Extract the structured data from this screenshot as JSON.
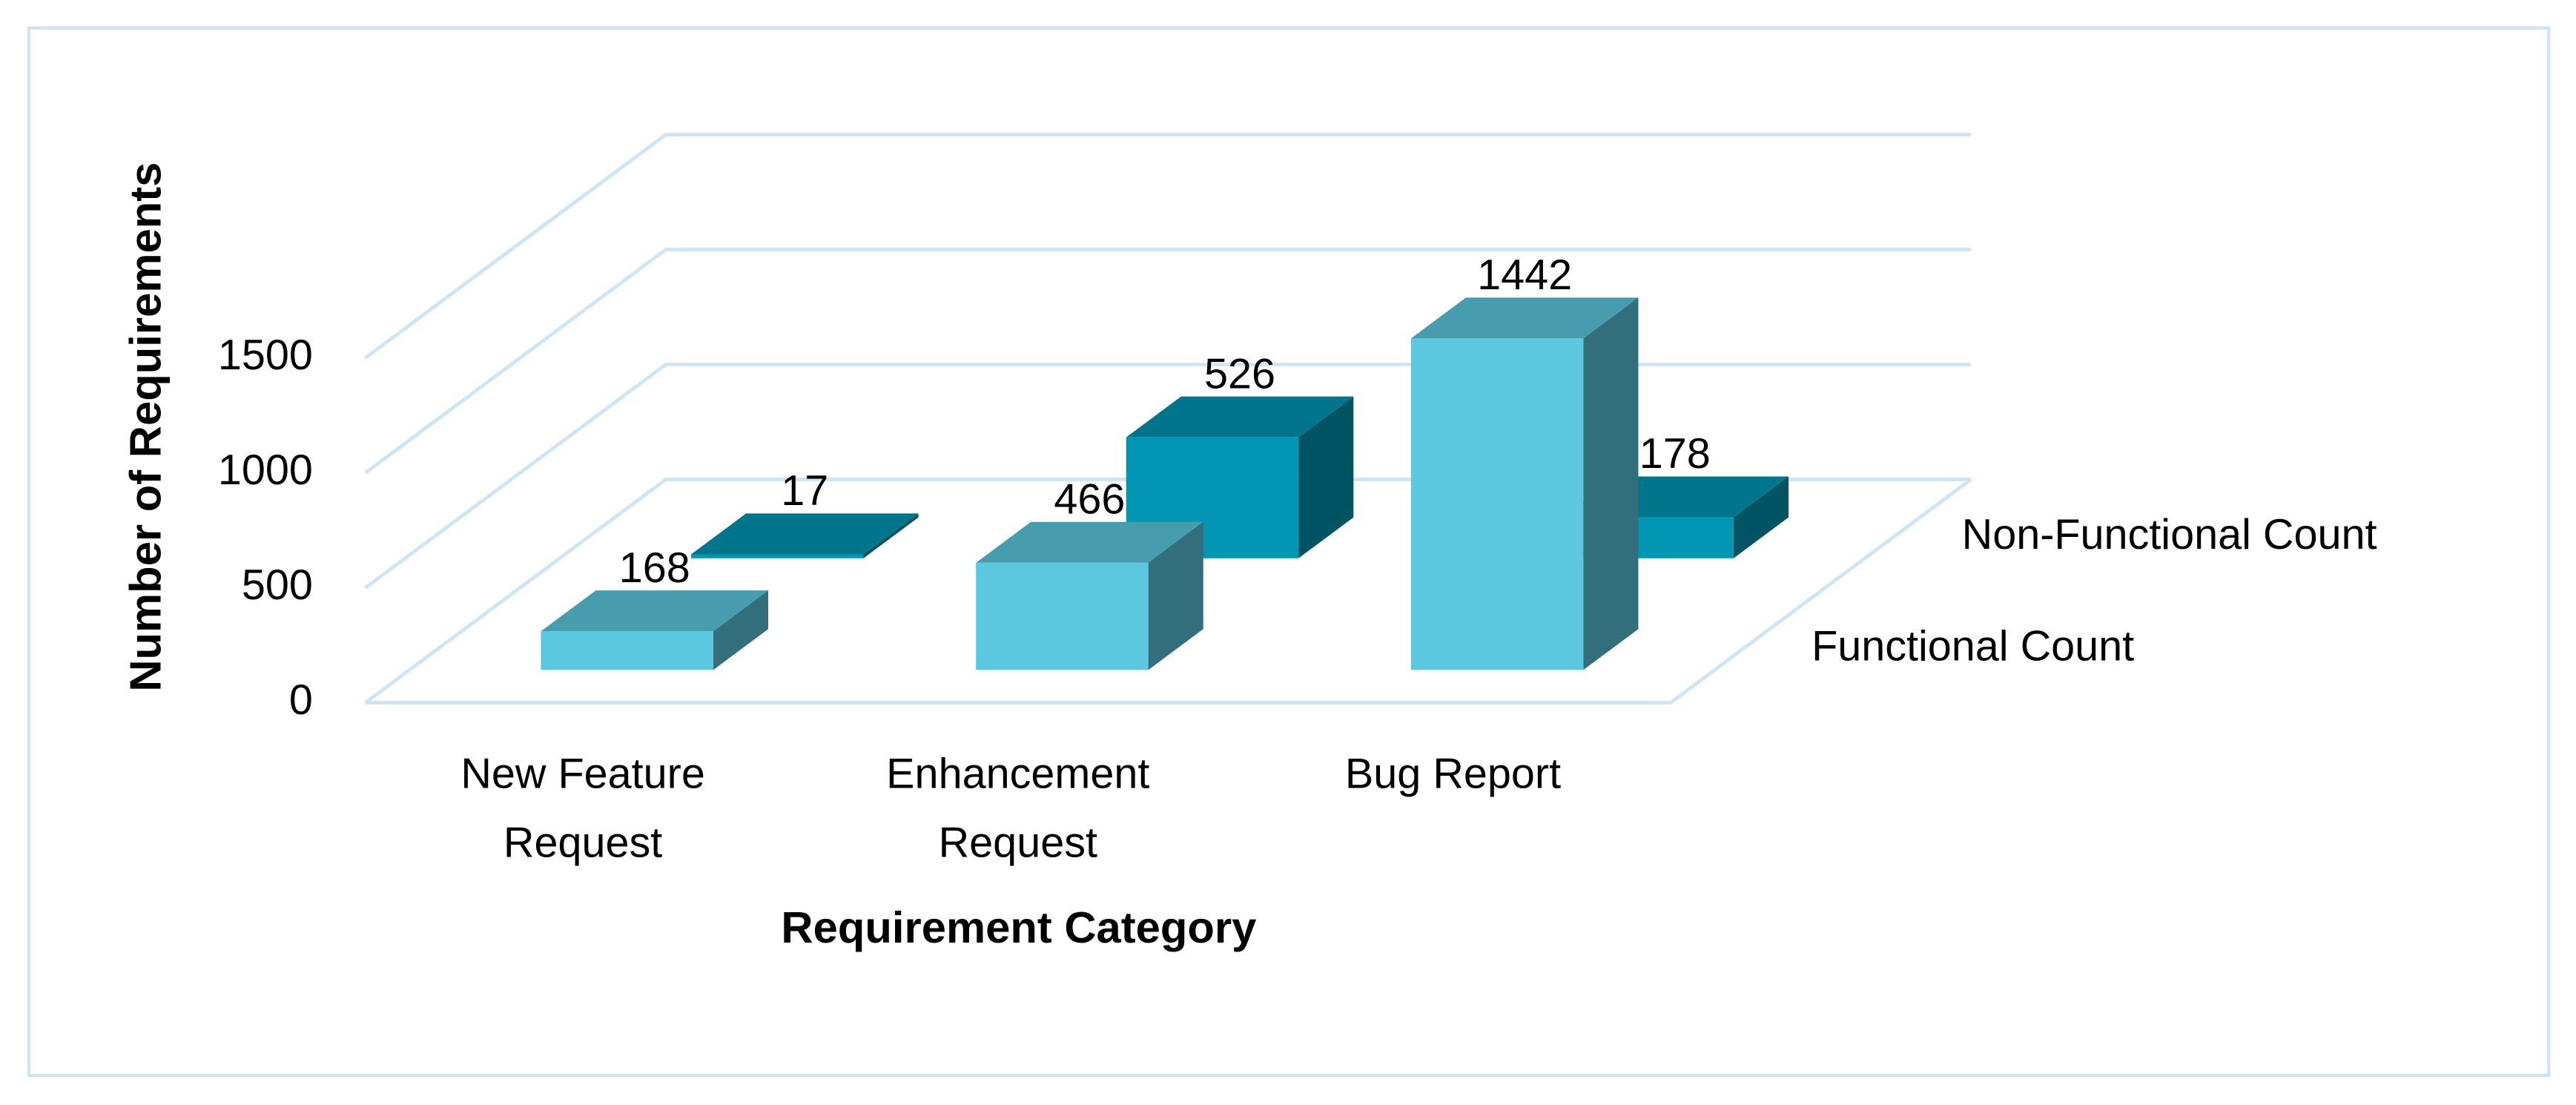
{
  "chart_data": {
    "type": "bar3d",
    "x_label": "Requirement Category",
    "y_label": "Number of Requirements",
    "categories": [
      "New Feature Request",
      "Enhancement Request",
      "Bug Report"
    ],
    "series": [
      {
        "name": "Functional Count",
        "color": "#5bc8df",
        "values": [
          168,
          466,
          1442
        ]
      },
      {
        "name": "Non-Functional Count",
        "color": "#0096b4",
        "values": [
          17,
          526,
          178
        ]
      }
    ],
    "ylim": [
      0,
      1500
    ],
    "yticks": [
      0,
      500,
      1000,
      1500
    ],
    "grid": true
  }
}
